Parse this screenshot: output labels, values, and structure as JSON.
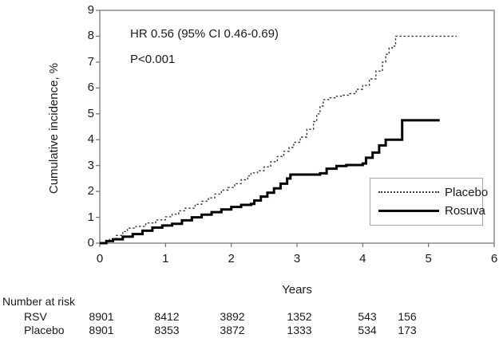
{
  "chart_data": {
    "type": "line",
    "subtype": "step-cumulative-incidence",
    "title": "",
    "xlabel": "Years",
    "ylabel": "Cumulative incidence, %",
    "xlim": [
      0,
      6
    ],
    "ylim": [
      0,
      9
    ],
    "x_ticks": [
      0,
      1,
      2,
      3,
      4,
      5,
      6
    ],
    "y_ticks": [
      0,
      1,
      2,
      3,
      4,
      5,
      6,
      7,
      8,
      9
    ],
    "grid": false,
    "annotations": {
      "hr_text": "HR 0.56 (95% CI 0.46-0.69)",
      "p_text": "P<0.001"
    },
    "legend": {
      "position": "lower-right",
      "entries": [
        {
          "label": "Placebo",
          "style": "dashed"
        },
        {
          "label": "Rosuva",
          "style": "solid"
        }
      ]
    },
    "series": [
      {
        "name": "Placebo",
        "style": "dashed",
        "step": true,
        "points": [
          [
            0,
            0
          ],
          [
            0.08,
            0.05
          ],
          [
            0.15,
            0.15
          ],
          [
            0.25,
            0.3
          ],
          [
            0.35,
            0.45
          ],
          [
            0.42,
            0.58
          ],
          [
            0.55,
            0.65
          ],
          [
            0.7,
            0.78
          ],
          [
            0.85,
            0.9
          ],
          [
            1.0,
            1.02
          ],
          [
            1.1,
            1.12
          ],
          [
            1.2,
            1.25
          ],
          [
            1.3,
            1.35
          ],
          [
            1.45,
            1.5
          ],
          [
            1.55,
            1.62
          ],
          [
            1.65,
            1.75
          ],
          [
            1.75,
            1.9
          ],
          [
            1.85,
            2.05
          ],
          [
            1.95,
            2.15
          ],
          [
            2.05,
            2.3
          ],
          [
            2.15,
            2.45
          ],
          [
            2.25,
            2.6
          ],
          [
            2.3,
            2.72
          ],
          [
            2.4,
            2.8
          ],
          [
            2.5,
            2.95
          ],
          [
            2.6,
            3.15
          ],
          [
            2.7,
            3.35
          ],
          [
            2.8,
            3.55
          ],
          [
            2.88,
            3.7
          ],
          [
            2.95,
            3.9
          ],
          [
            3.05,
            4.1
          ],
          [
            3.15,
            4.4
          ],
          [
            3.25,
            4.7
          ],
          [
            3.3,
            5.0
          ],
          [
            3.35,
            5.3
          ],
          [
            3.4,
            5.55
          ],
          [
            3.5,
            5.62
          ],
          [
            3.6,
            5.68
          ],
          [
            3.7,
            5.72
          ],
          [
            3.8,
            5.78
          ],
          [
            3.9,
            5.95
          ],
          [
            4.0,
            6.1
          ],
          [
            4.1,
            6.35
          ],
          [
            4.2,
            6.65
          ],
          [
            4.3,
            7.0
          ],
          [
            4.35,
            7.3
          ],
          [
            4.4,
            7.55
          ],
          [
            4.45,
            7.62
          ],
          [
            4.5,
            8.0
          ],
          [
            5.43,
            8.0
          ]
        ]
      },
      {
        "name": "Rosuva",
        "style": "solid",
        "step": true,
        "points": [
          [
            0,
            0
          ],
          [
            0.1,
            0.08
          ],
          [
            0.2,
            0.15
          ],
          [
            0.35,
            0.25
          ],
          [
            0.5,
            0.35
          ],
          [
            0.65,
            0.48
          ],
          [
            0.8,
            0.6
          ],
          [
            0.95,
            0.68
          ],
          [
            1.1,
            0.75
          ],
          [
            1.25,
            0.88
          ],
          [
            1.4,
            1.0
          ],
          [
            1.55,
            1.1
          ],
          [
            1.7,
            1.2
          ],
          [
            1.85,
            1.3
          ],
          [
            2.0,
            1.4
          ],
          [
            2.15,
            1.48
          ],
          [
            2.3,
            1.52
          ],
          [
            2.35,
            1.65
          ],
          [
            2.45,
            1.8
          ],
          [
            2.55,
            1.95
          ],
          [
            2.65,
            2.12
          ],
          [
            2.75,
            2.3
          ],
          [
            2.85,
            2.5
          ],
          [
            2.9,
            2.65
          ],
          [
            3.35,
            2.7
          ],
          [
            3.45,
            2.88
          ],
          [
            3.6,
            2.98
          ],
          [
            3.75,
            3.02
          ],
          [
            4.0,
            3.08
          ],
          [
            4.05,
            3.3
          ],
          [
            4.15,
            3.5
          ],
          [
            4.25,
            3.78
          ],
          [
            4.35,
            4.0
          ],
          [
            4.6,
            4.75
          ],
          [
            5.17,
            4.75
          ]
        ]
      }
    ]
  },
  "at_risk": {
    "title": "Number at risk",
    "rows": [
      {
        "label": "RSV",
        "values": [
          "8901",
          "8412",
          "3892",
          "1352",
          "543",
          "156"
        ]
      },
      {
        "label": "Placebo",
        "values": [
          "8901",
          "8353",
          "3872",
          "1333",
          "534",
          "173"
        ]
      }
    ]
  },
  "colors": {
    "curve_solid": "#000000",
    "curve_dashed": "#3a3a3a",
    "frame": "#6e6e6e",
    "text": "#1a1a1a",
    "legend_border": "#a6a6a6",
    "background": "#ffffff"
  }
}
